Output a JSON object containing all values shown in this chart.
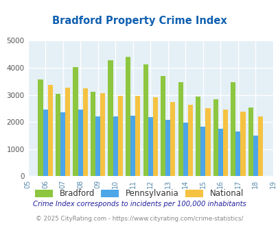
{
  "title": "Bradford Property Crime Index",
  "years": [
    2005,
    2006,
    2007,
    2008,
    2009,
    2010,
    2011,
    2012,
    2013,
    2014,
    2015,
    2016,
    2017,
    2018,
    2019
  ],
  "bradford": [
    null,
    3580,
    3040,
    4020,
    3120,
    4280,
    4400,
    4120,
    3700,
    3470,
    2940,
    2840,
    3460,
    2540,
    null
  ],
  "pennsylvania": [
    null,
    2460,
    2360,
    2450,
    2200,
    2200,
    2230,
    2170,
    2080,
    1970,
    1840,
    1750,
    1640,
    1490,
    null
  ],
  "national": [
    null,
    3360,
    3270,
    3250,
    3060,
    2960,
    2960,
    2910,
    2750,
    2640,
    2510,
    2470,
    2380,
    2210,
    null
  ],
  "bradford_color": "#8dc63f",
  "pennsylvania_color": "#4da6e8",
  "national_color": "#f5c242",
  "bg_color": "#e4f0f6",
  "ylim": [
    0,
    5000
  ],
  "yticks": [
    0,
    1000,
    2000,
    3000,
    4000,
    5000
  ],
  "bar_width": 0.28,
  "legend_labels": [
    "Bradford",
    "Pennsylvania",
    "National"
  ],
  "footnote1": "Crime Index corresponds to incidents per 100,000 inhabitants",
  "footnote2": "© 2025 CityRating.com - https://www.cityrating.com/crime-statistics/",
  "title_color": "#1060b0",
  "footnote1_color": "#2020a0",
  "footnote2_color": "#888888",
  "grid_color": "#ffffff",
  "tick_label_color": "#5588aa"
}
